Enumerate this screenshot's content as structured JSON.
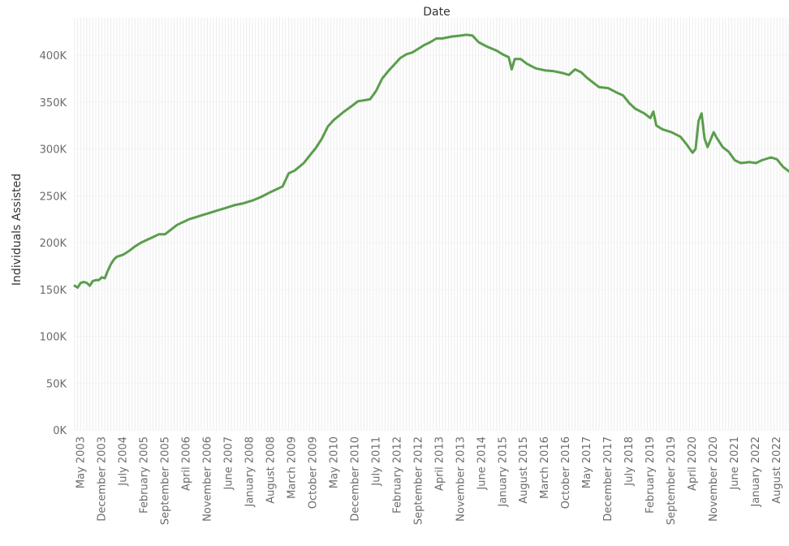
{
  "chart_data": {
    "type": "line",
    "title": "",
    "xlabel": "Date",
    "ylabel": "Individuals Assisted",
    "ylim": [
      0,
      440000
    ],
    "x_range": [
      "2003-03",
      "2022-12"
    ],
    "yticks": [
      "0K",
      "50K",
      "100K",
      "150K",
      "200K",
      "250K",
      "300K",
      "350K",
      "400K"
    ],
    "xticks": [
      "May 2003",
      "December 2003",
      "July 2004",
      "February 2005",
      "September 2005",
      "April 2006",
      "November 2006",
      "June 2007",
      "January 2008",
      "August 2008",
      "March 2009",
      "October 2009",
      "May 2010",
      "December 2010",
      "July 2011",
      "February 2012",
      "September 2012",
      "April 2013",
      "November 2013",
      "June 2014",
      "January 2015",
      "August 2015",
      "March 2016",
      "October 2016",
      "May 2017",
      "December 2017",
      "July 2018",
      "February 2019",
      "September 2019",
      "April 2020",
      "November 2020",
      "June 2021",
      "January 2022",
      "August 2022"
    ],
    "grid": "vertical monthly",
    "series": [
      {
        "name": "",
        "color": "#5a9e4c",
        "points": [
          [
            "2003-03",
            154000
          ],
          [
            "2003-04",
            152000
          ],
          [
            "2003-05",
            157000
          ],
          [
            "2003-06",
            158000
          ],
          [
            "2003-07",
            157000
          ],
          [
            "2003-08",
            154000
          ],
          [
            "2003-09",
            159000
          ],
          [
            "2003-10",
            160000
          ],
          [
            "2003-11",
            160000
          ],
          [
            "2003-12",
            163000
          ],
          [
            "2004-01",
            162000
          ],
          [
            "2004-02",
            170000
          ],
          [
            "2004-03",
            177000
          ],
          [
            "2004-04",
            182000
          ],
          [
            "2004-05",
            185000
          ],
          [
            "2004-06",
            186000
          ],
          [
            "2004-07",
            187000
          ],
          [
            "2004-09",
            191000
          ],
          [
            "2004-11",
            196000
          ],
          [
            "2005-01",
            200000
          ],
          [
            "2005-03",
            203000
          ],
          [
            "2005-05",
            206000
          ],
          [
            "2005-07",
            209000
          ],
          [
            "2005-09",
            209000
          ],
          [
            "2005-11",
            214000
          ],
          [
            "2006-01",
            219000
          ],
          [
            "2006-03",
            222000
          ],
          [
            "2006-05",
            225000
          ],
          [
            "2006-07",
            227000
          ],
          [
            "2006-09",
            229000
          ],
          [
            "2006-11",
            231000
          ],
          [
            "2007-02",
            234000
          ],
          [
            "2007-05",
            237000
          ],
          [
            "2007-08",
            240000
          ],
          [
            "2007-11",
            242000
          ],
          [
            "2008-02",
            245000
          ],
          [
            "2008-05",
            249000
          ],
          [
            "2008-08",
            254000
          ],
          [
            "2008-10",
            257000
          ],
          [
            "2008-12",
            260000
          ],
          [
            "2009-02",
            274000
          ],
          [
            "2009-04",
            277000
          ],
          [
            "2009-07",
            285000
          ],
          [
            "2009-09",
            293000
          ],
          [
            "2009-11",
            301000
          ],
          [
            "2010-01",
            311000
          ],
          [
            "2010-03",
            324000
          ],
          [
            "2010-05",
            331000
          ],
          [
            "2010-08",
            339000
          ],
          [
            "2010-11",
            346000
          ],
          [
            "2011-01",
            351000
          ],
          [
            "2011-03",
            352000
          ],
          [
            "2011-05",
            353000
          ],
          [
            "2011-07",
            362000
          ],
          [
            "2011-09",
            375000
          ],
          [
            "2011-11",
            383000
          ],
          [
            "2012-01",
            390000
          ],
          [
            "2012-03",
            397000
          ],
          [
            "2012-05",
            401000
          ],
          [
            "2012-07",
            403000
          ],
          [
            "2012-09",
            407000
          ],
          [
            "2012-11",
            411000
          ],
          [
            "2013-01",
            414000
          ],
          [
            "2013-03",
            418000
          ],
          [
            "2013-05",
            418000
          ],
          [
            "2013-08",
            420000
          ],
          [
            "2013-11",
            421000
          ],
          [
            "2014-01",
            422000
          ],
          [
            "2014-03",
            421000
          ],
          [
            "2014-05",
            414000
          ],
          [
            "2014-08",
            409000
          ],
          [
            "2014-11",
            405000
          ],
          [
            "2015-01",
            401000
          ],
          [
            "2015-03",
            398000
          ],
          [
            "2015-04",
            385000
          ],
          [
            "2015-05",
            396000
          ],
          [
            "2015-07",
            396000
          ],
          [
            "2015-09",
            391000
          ],
          [
            "2015-12",
            386000
          ],
          [
            "2016-03",
            384000
          ],
          [
            "2016-06",
            383000
          ],
          [
            "2016-09",
            381000
          ],
          [
            "2016-11",
            379000
          ],
          [
            "2017-01",
            385000
          ],
          [
            "2017-03",
            382000
          ],
          [
            "2017-05",
            376000
          ],
          [
            "2017-07",
            371000
          ],
          [
            "2017-09",
            366000
          ],
          [
            "2017-12",
            365000
          ],
          [
            "2018-03",
            360000
          ],
          [
            "2018-05",
            357000
          ],
          [
            "2018-07",
            349000
          ],
          [
            "2018-09",
            343000
          ],
          [
            "2018-12",
            338000
          ],
          [
            "2019-02",
            333000
          ],
          [
            "2019-03",
            340000
          ],
          [
            "2019-04",
            325000
          ],
          [
            "2019-06",
            321000
          ],
          [
            "2019-09",
            318000
          ],
          [
            "2019-12",
            313000
          ],
          [
            "2020-02",
            305000
          ],
          [
            "2020-04",
            296000
          ],
          [
            "2020-05",
            300000
          ],
          [
            "2020-06",
            330000
          ],
          [
            "2020-07",
            338000
          ],
          [
            "2020-08",
            311000
          ],
          [
            "2020-09",
            302000
          ],
          [
            "2020-11",
            318000
          ],
          [
            "2020-12",
            312000
          ],
          [
            "2021-02",
            302000
          ],
          [
            "2021-04",
            297000
          ],
          [
            "2021-06",
            288000
          ],
          [
            "2021-08",
            285000
          ],
          [
            "2021-11",
            286000
          ],
          [
            "2022-01",
            285000
          ],
          [
            "2022-03",
            288000
          ],
          [
            "2022-06",
            291000
          ],
          [
            "2022-08",
            289000
          ],
          [
            "2022-10",
            281000
          ],
          [
            "2022-12",
            276000
          ]
        ]
      }
    ]
  }
}
